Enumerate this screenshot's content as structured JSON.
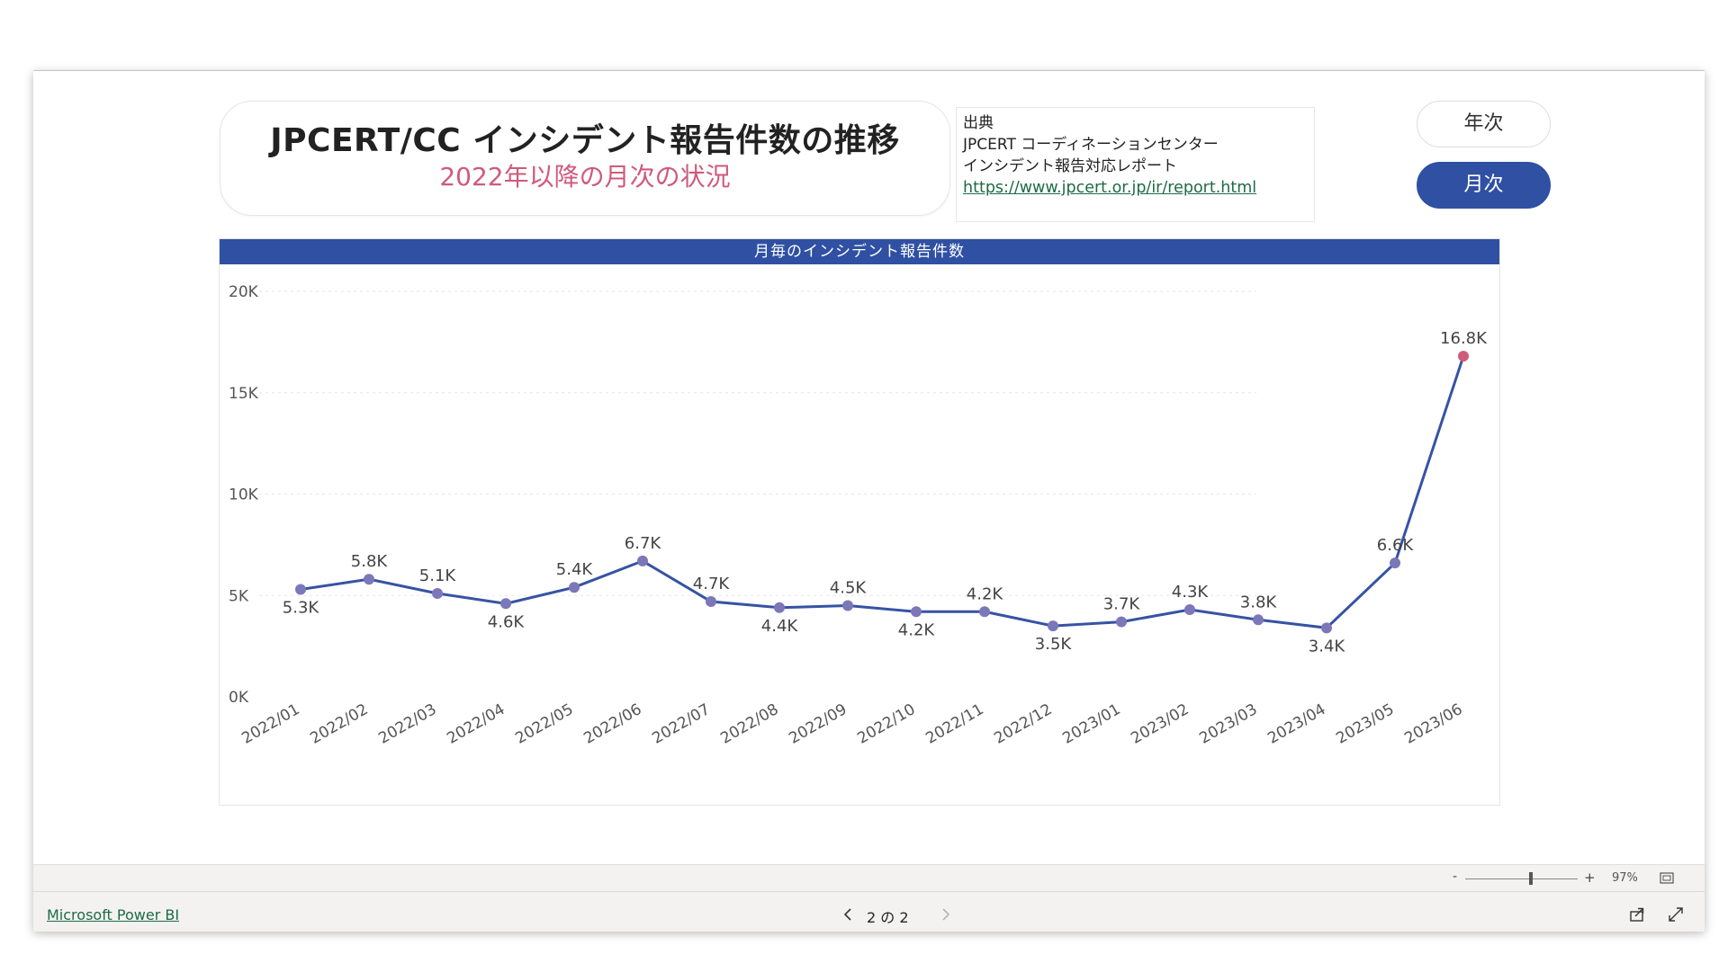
{
  "header": {
    "title": "JPCERT/CC インシデント報告件数の推移",
    "subtitle": "2022年以降の月次の状況"
  },
  "source": {
    "label": "出典",
    "org": "JPCERT コーディネーションセンター",
    "report": "インシデント報告対応レポート",
    "url": "https://www.jpcert.or.jp/ir/report.html"
  },
  "toggles": {
    "year_label": "年次",
    "month_label": "月次",
    "selected": "月次"
  },
  "colors": {
    "accent": "#2f50a3",
    "line": "#3653a4",
    "marker": "#7b77b8",
    "highlight": "#d05a7b",
    "subtitle": "#d05a7b",
    "link": "#1e6b45"
  },
  "chart_data": {
    "type": "line",
    "title": "月毎のインシデント報告件数",
    "xlabel": "",
    "ylabel": "",
    "categories": [
      "2022/01",
      "2022/02",
      "2022/03",
      "2022/04",
      "2022/05",
      "2022/06",
      "2022/07",
      "2022/08",
      "2022/09",
      "2022/10",
      "2022/11",
      "2022/12",
      "2023/01",
      "2023/02",
      "2023/03",
      "2023/04",
      "2023/05",
      "2023/06"
    ],
    "values": [
      5300,
      5800,
      5100,
      4600,
      5400,
      6700,
      4700,
      4400,
      4500,
      4200,
      4200,
      3500,
      3700,
      4300,
      3800,
      3400,
      6600,
      16800
    ],
    "data_labels": [
      "5.3K",
      "5.8K",
      "5.1K",
      "4.6K",
      "5.4K",
      "6.7K",
      "4.7K",
      "4.4K",
      "4.5K",
      "4.2K",
      "4.2K",
      "3.5K",
      "3.7K",
      "4.3K",
      "3.8K",
      "3.4K",
      "6.6K",
      "16.8K"
    ],
    "y_ticks": [
      0,
      5000,
      10000,
      15000,
      20000
    ],
    "y_tick_labels": [
      "0K",
      "5K",
      "10K",
      "15K",
      "20K"
    ],
    "ylim": [
      0,
      20000
    ],
    "grid": true,
    "highlight_index": 17
  },
  "footer": {
    "brand_link": "Microsoft Power BI",
    "page_indicator": "2 の 2",
    "zoom_minus": "-",
    "zoom_plus": "+",
    "zoom_level": "97%",
    "zoom_value": 0.58
  }
}
